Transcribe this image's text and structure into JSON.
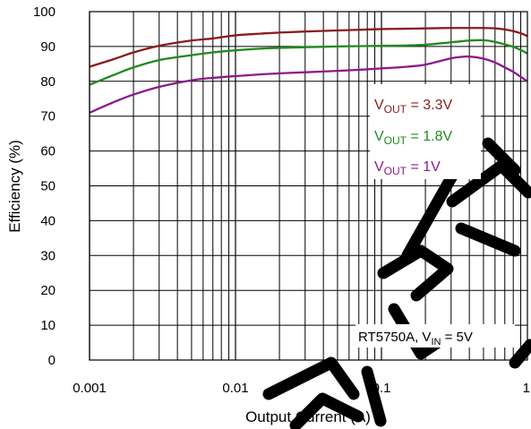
{
  "chart_data": {
    "type": "line",
    "title": "",
    "xlabel": "Output Current (A)",
    "ylabel": "Efficiency (%)",
    "x_scale": "log",
    "xlim": [
      0.001,
      1
    ],
    "ylim": [
      0,
      100
    ],
    "x_ticks": [
      "0.001",
      "0.01",
      "0.1",
      "1"
    ],
    "y_ticks": [
      "0",
      "10",
      "20",
      "30",
      "40",
      "50",
      "60",
      "70",
      "80",
      "90",
      "100"
    ],
    "grid": true,
    "legend_position": "right",
    "annotation": {
      "prefix": "RT5750A, V",
      "sub": "IN",
      "suffix": " = 5V"
    },
    "series": [
      {
        "name": "VOUT = 3.3V",
        "label": {
          "prefix": "V",
          "sub": "OUT",
          "suffix": " = 3.3V"
        },
        "color": "#8b1a1a",
        "x": [
          0.001,
          0.0015,
          0.002,
          0.003,
          0.005,
          0.007,
          0.01,
          0.015,
          0.02,
          0.03,
          0.05,
          0.07,
          0.1,
          0.15,
          0.2,
          0.3,
          0.4,
          0.5,
          0.6,
          0.7,
          0.8,
          0.9,
          1.0
        ],
        "y": [
          84.2,
          86.5,
          88.3,
          90.2,
          91.7,
          92.3,
          93.2,
          93.7,
          94.0,
          94.3,
          94.6,
          94.8,
          95.0,
          95.1,
          95.2,
          95.3,
          95.3,
          95.3,
          95.2,
          94.9,
          94.4,
          93.8,
          93.0
        ]
      },
      {
        "name": "VOUT = 1.8V",
        "label": {
          "prefix": "V",
          "sub": "OUT",
          "suffix": " = 1.8V"
        },
        "color": "#1f8a1f",
        "x": [
          0.001,
          0.0015,
          0.002,
          0.003,
          0.005,
          0.007,
          0.01,
          0.015,
          0.02,
          0.03,
          0.05,
          0.07,
          0.1,
          0.15,
          0.2,
          0.3,
          0.4,
          0.5,
          0.6,
          0.7,
          0.8,
          0.9,
          1.0
        ],
        "y": [
          79.0,
          82.0,
          84.0,
          86.1,
          87.5,
          88.3,
          88.9,
          89.4,
          89.6,
          89.8,
          90.0,
          90.1,
          90.2,
          90.3,
          90.5,
          91.2,
          91.7,
          91.8,
          91.3,
          90.6,
          89.9,
          89.0,
          88.0
        ]
      },
      {
        "name": "VOUT = 1V",
        "label": {
          "prefix": "V",
          "sub": "OUT",
          "suffix": " = 1V"
        },
        "color": "#8a1a8a",
        "x": [
          0.001,
          0.0015,
          0.002,
          0.003,
          0.005,
          0.007,
          0.01,
          0.015,
          0.02,
          0.03,
          0.05,
          0.07,
          0.1,
          0.15,
          0.2,
          0.3,
          0.35,
          0.4,
          0.5,
          0.6,
          0.7,
          0.8,
          0.9,
          1.0
        ],
        "y": [
          71.0,
          74.2,
          76.2,
          78.4,
          80.3,
          81.0,
          81.5,
          82.0,
          82.3,
          82.6,
          83.0,
          83.3,
          83.7,
          84.2,
          84.8,
          86.6,
          87.0,
          87.1,
          86.5,
          85.4,
          84.0,
          82.7,
          81.3,
          80.0
        ]
      }
    ]
  }
}
